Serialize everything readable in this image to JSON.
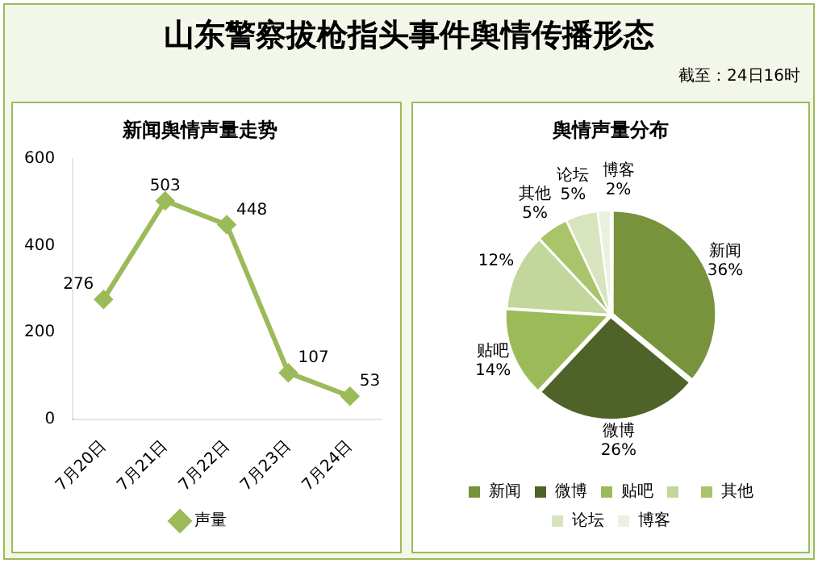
{
  "chart_data": [
    {
      "type": "other",
      "title": "山东警察拔枪指头事件舆情传播形态",
      "annotations": [
        "截至：24日16时"
      ]
    },
    {
      "type": "line",
      "title": "新闻舆情声量走势",
      "categories": [
        "7月20日",
        "7月21日",
        "7月22日",
        "7月23日",
        "7月24日"
      ],
      "series": [
        {
          "name": "声量",
          "color": "#9bbb59",
          "values": [
            276,
            503,
            448,
            107,
            53
          ]
        }
      ],
      "ylim": [
        0,
        600
      ],
      "yticks": [
        0,
        200,
        400,
        600
      ],
      "grid": false,
      "legend": "bottom",
      "marker": "diamond",
      "line_style": "solid",
      "data_labels": true
    },
    {
      "type": "pie",
      "title": "舆情声量分布",
      "categories": [
        "新闻",
        "微博",
        "贴吧",
        null,
        "其他",
        "论坛",
        "博客"
      ],
      "values": [
        36,
        26,
        14,
        12,
        5,
        5,
        2
      ],
      "colors": [
        "#77933c",
        "#4f6228",
        "#9bbb59",
        "#c3d69b",
        "#a9c46b",
        "#d7e4bd",
        "#ebf1de"
      ],
      "value_labels": [
        "36%",
        "26%",
        "14%",
        "12%",
        "5%",
        "5%",
        "2%"
      ],
      "legend": "bottom"
    }
  ]
}
